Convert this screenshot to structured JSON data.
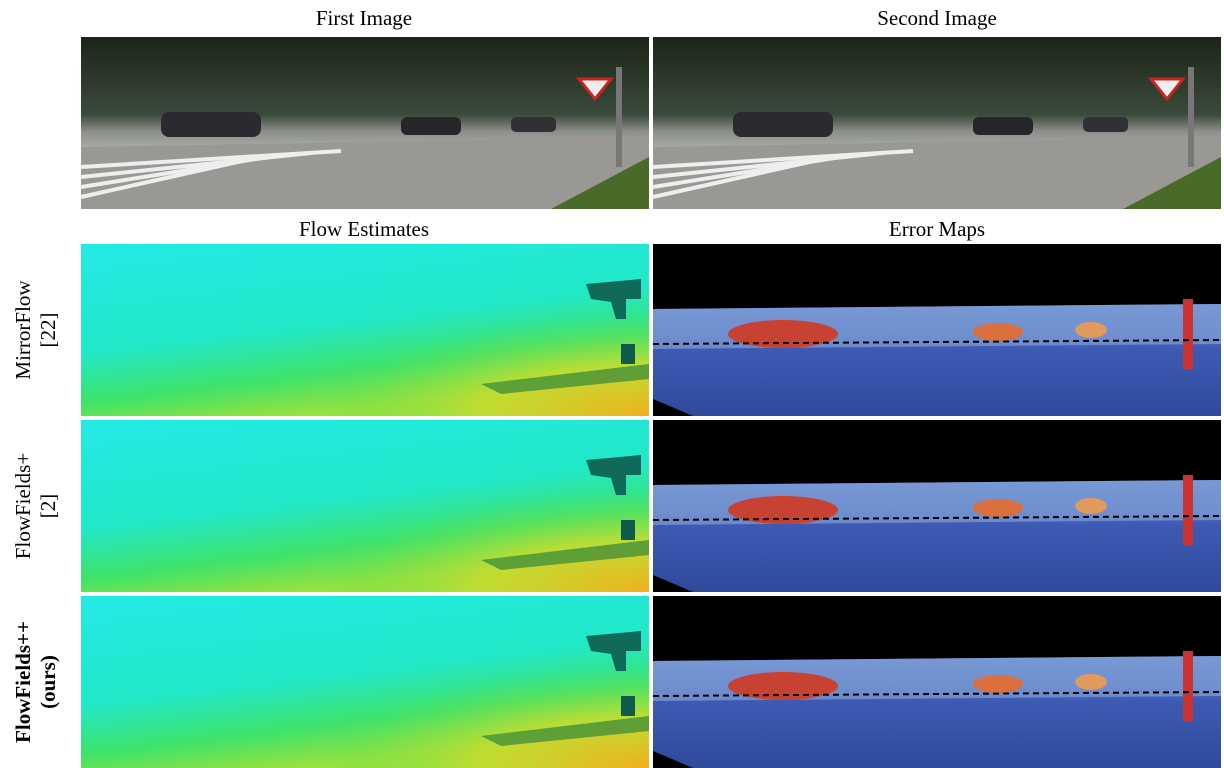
{
  "headers": {
    "first_image": "First Image",
    "second_image": "Second Image",
    "flow_estimates": "Flow Estimates",
    "error_maps": "Error Maps"
  },
  "rows": [
    {
      "method": "MirrorFlow",
      "ref": "[22]"
    },
    {
      "method": "FlowFields+",
      "ref": "[2]"
    },
    {
      "method": "FlowFields++",
      "ref": "(ours)"
    }
  ]
}
